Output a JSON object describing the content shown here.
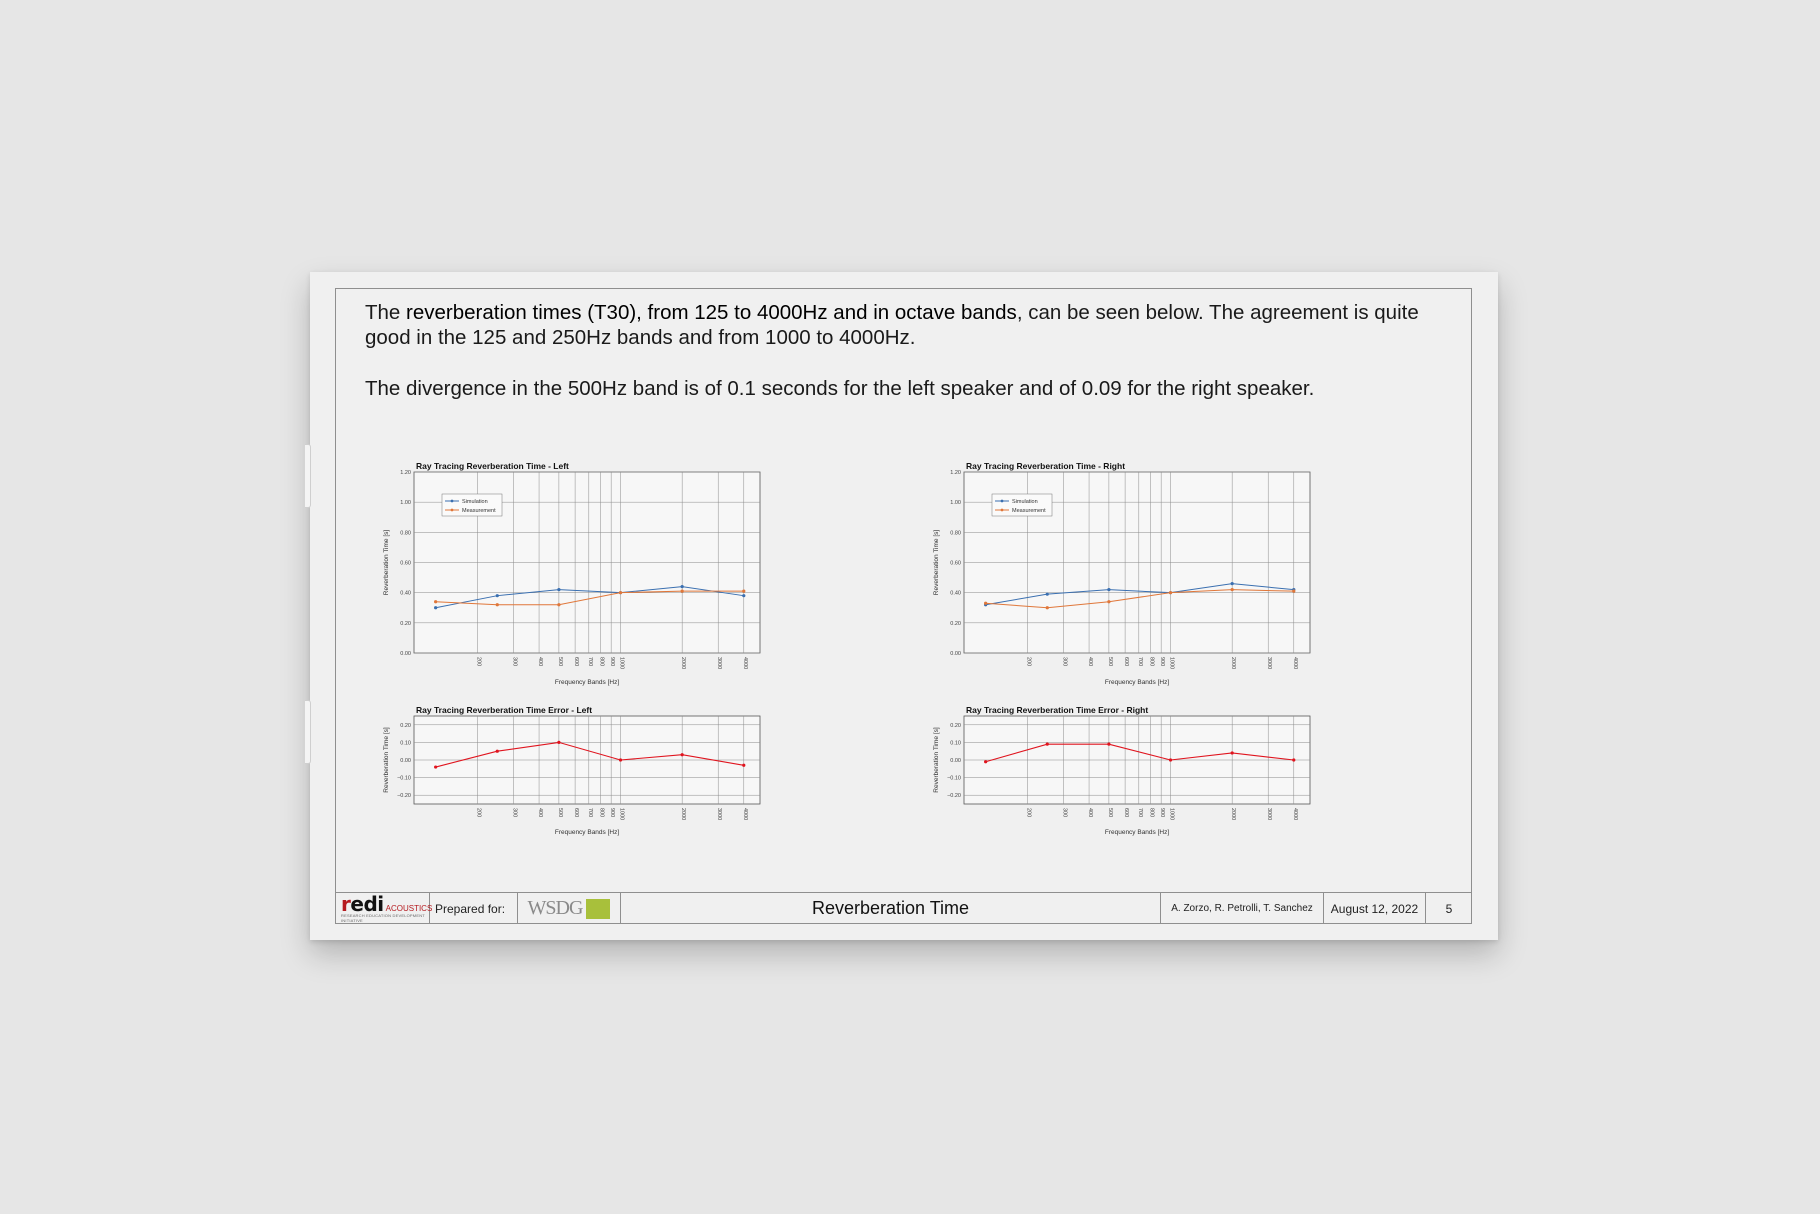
{
  "document": {
    "intro_pre": "The ",
    "intro_bold": "reverberation times (T30), from 125 to 4000Hz and in octave bands",
    "intro_post": ", can be seen below. The agreement is quite good in the 125 and 250Hz bands and from 1000 to 4000Hz.",
    "paragraph2": "The divergence in the 500Hz band is of 0.1 seconds for the left speaker and of 0.09 for the right speaker."
  },
  "footer": {
    "logo_word_red": "r",
    "logo_word_black": "edi",
    "logo_suffix": "ACOUSTICS",
    "logo_tagline": "RESEARCH EDUCATION DEVELOPMENT INITIATIVE",
    "prepared_for_label": "Prepared for:",
    "client_logo_text": "WSDG",
    "section_title": "Reverberation Time",
    "authors": "A. Zorzo, R. Petrolli, T. Sanchez",
    "date": "August 12, 2022",
    "page_number": "5"
  },
  "colors": {
    "simulation": "#3a6fb0",
    "measurement": "#e0773a",
    "error": "#e0141e",
    "grid": "#8a8a8a",
    "logo_red": "#b51a1f",
    "client_accent": "#a8c03b"
  },
  "chart_data": [
    {
      "id": "rt-left",
      "type": "line",
      "title": "Ray Tracing Reverberation Time - Left",
      "xlabel": "Frequency Bands [Hz]",
      "ylabel": "Reverberation Time [s]",
      "xscale": "log",
      "x": [
        125,
        250,
        500,
        1000,
        2000,
        4000
      ],
      "xticks": [
        "200",
        "300",
        "400",
        "500",
        "600",
        "700",
        "800",
        "900",
        "1000",
        "2000",
        "3000",
        "4000"
      ],
      "yticks": [
        "0.00",
        "0.20",
        "0.40",
        "0.60",
        "0.80",
        "1.00",
        "1.20"
      ],
      "ylim": [
        0,
        1.2
      ],
      "legend_position": "top-left",
      "series": [
        {
          "name": "Simulation",
          "values": [
            0.3,
            0.38,
            0.42,
            0.4,
            0.44,
            0.38
          ]
        },
        {
          "name": "Measurement",
          "values": [
            0.34,
            0.32,
            0.32,
            0.4,
            0.41,
            0.41
          ]
        }
      ]
    },
    {
      "id": "rt-right",
      "type": "line",
      "title": "Ray Tracing Reverberation Time - Right",
      "xlabel": "Frequency Bands [Hz]",
      "ylabel": "Reverberation Time [s]",
      "xscale": "log",
      "x": [
        125,
        250,
        500,
        1000,
        2000,
        4000
      ],
      "xticks": [
        "200",
        "300",
        "400",
        "500",
        "600",
        "700",
        "800",
        "900",
        "1000",
        "2000",
        "3000",
        "4000"
      ],
      "yticks": [
        "0.00",
        "0.20",
        "0.40",
        "0.60",
        "0.80",
        "1.00",
        "1.20"
      ],
      "ylim": [
        0,
        1.2
      ],
      "legend_position": "top-left",
      "series": [
        {
          "name": "Simulation",
          "values": [
            0.32,
            0.39,
            0.42,
            0.4,
            0.46,
            0.42
          ]
        },
        {
          "name": "Measurement",
          "values": [
            0.33,
            0.3,
            0.34,
            0.4,
            0.42,
            0.41
          ]
        }
      ]
    },
    {
      "id": "err-left",
      "type": "line",
      "title": "Ray Tracing Reverberation Time Error - Left",
      "xlabel": "Frequency Bands [Hz]",
      "ylabel": "Reverberation Time [s]",
      "xscale": "log",
      "x": [
        125,
        250,
        500,
        1000,
        2000,
        4000
      ],
      "xticks": [
        "200",
        "300",
        "400",
        "500",
        "600",
        "700",
        "800",
        "900",
        "1000",
        "2000",
        "3000",
        "4000"
      ],
      "yticks": [
        "-0.20",
        "-0.10",
        "0.00",
        "0.10",
        "0.20"
      ],
      "ylim": [
        -0.25,
        0.25
      ],
      "series": [
        {
          "values": [
            -0.04,
            0.05,
            0.1,
            0.0,
            0.03,
            -0.03
          ]
        }
      ]
    },
    {
      "id": "err-right",
      "type": "line",
      "title": "Ray Tracing Reverberation Time Error - Right",
      "xlabel": "Frequency Bands [Hz]",
      "ylabel": "Reverberation Time [s]",
      "xscale": "log",
      "x": [
        125,
        250,
        500,
        1000,
        2000,
        4000
      ],
      "xticks": [
        "200",
        "300",
        "400",
        "500",
        "600",
        "700",
        "800",
        "900",
        "1000",
        "2000",
        "3000",
        "4000"
      ],
      "yticks": [
        "-0.20",
        "-0.10",
        "0.00",
        "0.10",
        "0.20"
      ],
      "ylim": [
        -0.25,
        0.25
      ],
      "series": [
        {
          "values": [
            -0.01,
            0.09,
            0.09,
            0.0,
            0.04,
            0.0
          ]
        }
      ]
    }
  ]
}
